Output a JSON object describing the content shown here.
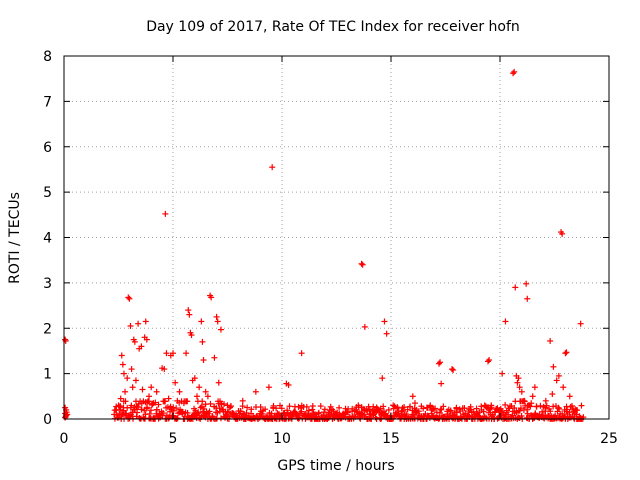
{
  "chart_data": {
    "type": "scatter",
    "title": "Day 109 of 2017, Rate Of TEC Index for receiver hofn",
    "xlabel": "GPS time / hours",
    "ylabel": "ROTI / TECUs",
    "xlim": [
      0,
      25
    ],
    "ylim": [
      0,
      8
    ],
    "x_ticks": [
      0,
      5,
      10,
      15,
      20,
      25
    ],
    "x_tick_labels": [
      "0",
      "5",
      "10",
      "15",
      "20",
      "25"
    ],
    "y_ticks": [
      0,
      1,
      2,
      3,
      4,
      5,
      6,
      7,
      8
    ],
    "y_tick_labels": [
      "0",
      "1",
      "2",
      "3",
      "4",
      "5",
      "6",
      "7",
      "8"
    ],
    "grid": true,
    "marker": "+",
    "colors": {
      "series": "#ff0000",
      "grid": "#a0a0a0",
      "frame": "#000000"
    },
    "series": [
      {
        "name": "ROTI",
        "points": [
          [
            0.05,
            1.75
          ],
          [
            0.08,
            1.72
          ],
          [
            0.05,
            0.25
          ],
          [
            0.1,
            0.2
          ],
          [
            0.05,
            0.12
          ],
          [
            0.1,
            0.08
          ],
          [
            0.15,
            0.1
          ],
          [
            0.08,
            0.05
          ],
          [
            0.12,
            0.15
          ],
          [
            0.05,
            0.03
          ],
          [
            2.3,
            0.1
          ],
          [
            2.4,
            0.2
          ],
          [
            2.5,
            0.3
          ],
          [
            2.6,
            0.45
          ],
          [
            2.65,
            1.4
          ],
          [
            2.7,
            1.2
          ],
          [
            2.75,
            1.0
          ],
          [
            2.8,
            0.6
          ],
          [
            2.9,
            0.9
          ],
          [
            2.95,
            2.68
          ],
          [
            3.0,
            2.65
          ],
          [
            3.05,
            2.05
          ],
          [
            3.1,
            1.1
          ],
          [
            3.15,
            0.7
          ],
          [
            3.2,
            1.75
          ],
          [
            3.25,
            1.7
          ],
          [
            3.3,
            0.85
          ],
          [
            3.4,
            2.1
          ],
          [
            3.45,
            1.55
          ],
          [
            3.55,
            1.6
          ],
          [
            3.6,
            0.65
          ],
          [
            3.7,
            1.8
          ],
          [
            3.75,
            2.15
          ],
          [
            3.8,
            1.75
          ],
          [
            3.9,
            0.5
          ],
          [
            4.0,
            0.7
          ],
          [
            4.1,
            0.35
          ],
          [
            4.25,
            0.6
          ],
          [
            4.5,
            1.12
          ],
          [
            4.6,
            1.1
          ],
          [
            4.65,
            4.52
          ],
          [
            4.7,
            1.45
          ],
          [
            4.8,
            0.45
          ],
          [
            4.9,
            1.4
          ],
          [
            5.0,
            1.45
          ],
          [
            5.1,
            0.8
          ],
          [
            5.2,
            0.4
          ],
          [
            5.3,
            0.6
          ],
          [
            5.5,
            0.35
          ],
          [
            5.6,
            1.45
          ],
          [
            5.7,
            2.4
          ],
          [
            5.75,
            2.3
          ],
          [
            5.8,
            1.9
          ],
          [
            5.85,
            1.85
          ],
          [
            5.9,
            0.85
          ],
          [
            6.0,
            0.9
          ],
          [
            6.1,
            0.5
          ],
          [
            6.2,
            0.7
          ],
          [
            6.3,
            2.15
          ],
          [
            6.35,
            1.7
          ],
          [
            6.4,
            1.3
          ],
          [
            6.5,
            0.6
          ],
          [
            6.6,
            0.5
          ],
          [
            6.7,
            2.72
          ],
          [
            6.75,
            2.68
          ],
          [
            6.9,
            1.35
          ],
          [
            7.0,
            2.25
          ],
          [
            7.05,
            2.15
          ],
          [
            7.1,
            0.8
          ],
          [
            7.2,
            1.97
          ],
          [
            7.3,
            0.2
          ],
          [
            7.5,
            0.3
          ],
          [
            8.2,
            0.4
          ],
          [
            8.8,
            0.6
          ],
          [
            9.4,
            0.7
          ],
          [
            9.55,
            5.55
          ],
          [
            9.6,
            0.25
          ],
          [
            10.2,
            0.78
          ],
          [
            10.3,
            0.75
          ],
          [
            10.9,
            1.45
          ],
          [
            11.5,
            0.1
          ],
          [
            12.5,
            0.1
          ],
          [
            13.0,
            0.15
          ],
          [
            13.5,
            0.3
          ],
          [
            13.65,
            3.42
          ],
          [
            13.7,
            3.4
          ],
          [
            13.8,
            2.03
          ],
          [
            14.2,
            0.1
          ],
          [
            14.6,
            0.9
          ],
          [
            14.7,
            2.15
          ],
          [
            14.8,
            1.88
          ],
          [
            14.9,
            0.2
          ],
          [
            15.1,
            0.3
          ],
          [
            16.0,
            0.5
          ],
          [
            16.1,
            0.35
          ],
          [
            17.2,
            1.22
          ],
          [
            17.25,
            1.25
          ],
          [
            17.3,
            0.78
          ],
          [
            17.8,
            1.1
          ],
          [
            17.85,
            1.08
          ],
          [
            18.0,
            0.25
          ],
          [
            19.3,
            0.3
          ],
          [
            19.45,
            1.27
          ],
          [
            19.5,
            1.3
          ],
          [
            19.6,
            0.3
          ],
          [
            20.1,
            1.0
          ],
          [
            20.25,
            2.15
          ],
          [
            20.6,
            7.62
          ],
          [
            20.65,
            7.65
          ],
          [
            20.7,
            2.9
          ],
          [
            20.75,
            0.95
          ],
          [
            20.8,
            0.8
          ],
          [
            20.85,
            0.9
          ],
          [
            20.9,
            0.7
          ],
          [
            21.0,
            0.6
          ],
          [
            21.1,
            0.4
          ],
          [
            21.2,
            2.98
          ],
          [
            21.25,
            2.65
          ],
          [
            21.3,
            0.3
          ],
          [
            21.5,
            0.5
          ],
          [
            21.6,
            0.7
          ],
          [
            22.1,
            0.4
          ],
          [
            22.3,
            1.72
          ],
          [
            22.4,
            0.55
          ],
          [
            22.45,
            1.15
          ],
          [
            22.6,
            0.85
          ],
          [
            22.7,
            0.95
          ],
          [
            22.8,
            4.12
          ],
          [
            22.85,
            4.08
          ],
          [
            22.9,
            0.7
          ],
          [
            23.0,
            1.45
          ],
          [
            23.05,
            1.47
          ],
          [
            23.2,
            0.5
          ],
          [
            23.5,
            0.1
          ],
          [
            23.7,
            2.1
          ]
        ],
        "baseline_band": {
          "description": "dense cluster of near-zero ROTI values",
          "x_range": [
            2.3,
            23.8
          ],
          "y_range": [
            0.0,
            0.3
          ]
        }
      }
    ]
  }
}
